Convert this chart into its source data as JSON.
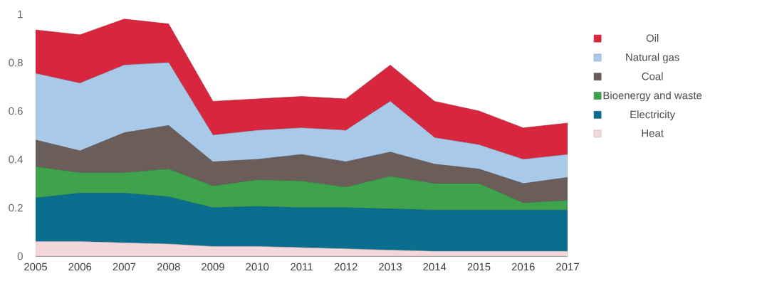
{
  "chart_data": {
    "type": "area",
    "stacked": true,
    "legend": "right",
    "categories": [
      "2005",
      "2006",
      "2007",
      "2008",
      "2009",
      "2010",
      "2011",
      "2012",
      "2013",
      "2014",
      "2015",
      "2016",
      "2017"
    ],
    "ylim": [
      0,
      1
    ],
    "yticks": [
      0,
      {
        "value": 0.2,
        "label": "0.2"
      },
      {
        "value": 0.4,
        "label": "0.4"
      },
      {
        "value": 0.6,
        "label": "0.6"
      },
      {
        "value": 0.8,
        "label": "0.8"
      },
      1
    ],
    "series": [
      {
        "name": "Heat",
        "color": "#f4d7dc",
        "values": [
          0.06,
          0.06,
          0.055,
          0.05,
          0.04,
          0.04,
          0.035,
          0.03,
          0.025,
          0.02,
          0.02,
          0.02,
          0.02
        ]
      },
      {
        "name": "Electricity",
        "color": "#0a6e8e",
        "values": [
          0.18,
          0.2,
          0.205,
          0.195,
          0.16,
          0.165,
          0.165,
          0.17,
          0.17,
          0.17,
          0.17,
          0.17,
          0.17
        ]
      },
      {
        "name": "Bioenergy and waste",
        "color": "#3fa34d",
        "values": [
          0.13,
          0.085,
          0.085,
          0.115,
          0.09,
          0.11,
          0.11,
          0.085,
          0.135,
          0.11,
          0.11,
          0.03,
          0.04
        ]
      },
      {
        "name": "Coal",
        "color": "#6b5e5a",
        "values": [
          0.11,
          0.09,
          0.165,
          0.18,
          0.1,
          0.085,
          0.11,
          0.105,
          0.1,
          0.08,
          0.06,
          0.08,
          0.095
        ]
      },
      {
        "name": "Natural gas",
        "color": "#a9c9e8",
        "values": [
          0.275,
          0.28,
          0.28,
          0.26,
          0.11,
          0.12,
          0.11,
          0.13,
          0.21,
          0.11,
          0.1,
          0.1,
          0.095
        ]
      },
      {
        "name": "Oil",
        "color": "#d7263d",
        "values": [
          0.18,
          0.2,
          0.19,
          0.16,
          0.14,
          0.13,
          0.13,
          0.13,
          0.15,
          0.15,
          0.14,
          0.13,
          0.13
        ]
      }
    ]
  }
}
